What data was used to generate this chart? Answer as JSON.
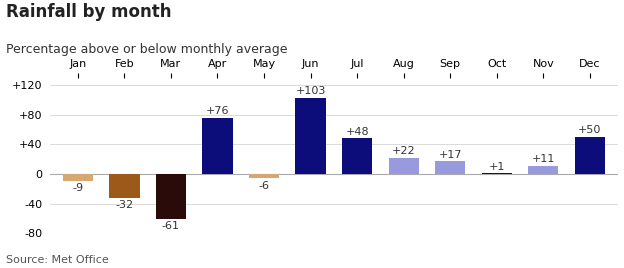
{
  "title": "Rainfall by month",
  "subtitle": "Percentage above or below monthly average",
  "source": "Source: Met Office",
  "months": [
    "Jan",
    "Feb",
    "Mar",
    "Apr",
    "May",
    "Jun",
    "Jul",
    "Aug",
    "Sep",
    "Oct",
    "Nov",
    "Dec"
  ],
  "values": [
    -9,
    -32,
    -61,
    76,
    -6,
    103,
    48,
    22,
    17,
    1,
    11,
    50
  ],
  "bar_colors": [
    "#d4a870",
    "#9b5a1a",
    "#2b0a0a",
    "#0c0c7a",
    "#d4a870",
    "#0c0c7a",
    "#0c0c7a",
    "#9999dd",
    "#9999dd",
    "#0c0c7a",
    "#9999dd",
    "#0c0c7a"
  ],
  "ylim": [
    -80,
    130
  ],
  "yticks": [
    -80,
    -40,
    0,
    40,
    80,
    120
  ],
  "ytick_labels": [
    "-80",
    "-40",
    "0",
    "+40",
    "+80",
    "+120"
  ],
  "background_color": "#ffffff",
  "title_fontsize": 12,
  "subtitle_fontsize": 9,
  "label_fontsize": 8,
  "source_fontsize": 8
}
